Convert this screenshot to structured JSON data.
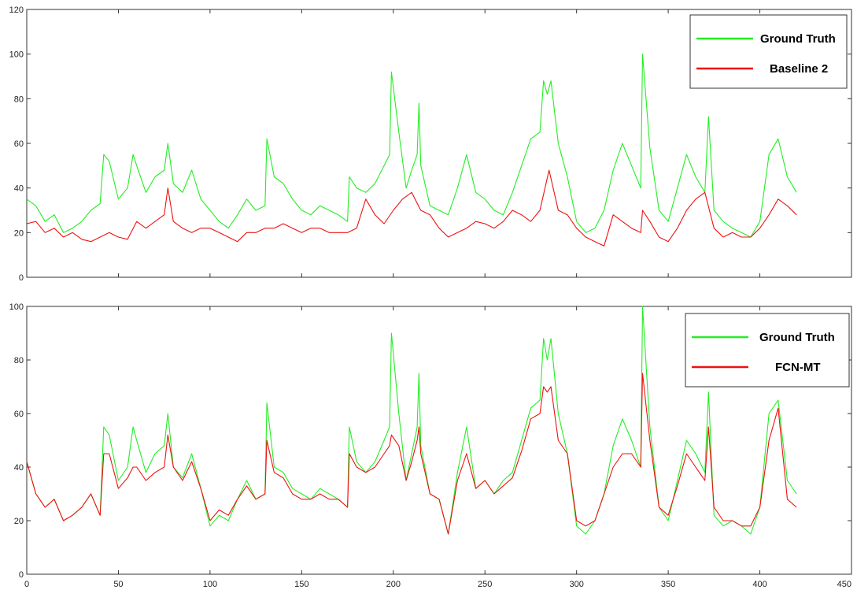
{
  "chart_data": [
    {
      "type": "line",
      "title": "",
      "xlabel": "",
      "ylabel": "",
      "xlim": [
        0,
        450
      ],
      "ylim": [
        0,
        120
      ],
      "xticks": [
        0,
        50,
        100,
        150,
        200,
        250,
        300,
        350,
        400,
        450
      ],
      "yticks": [
        0,
        20,
        40,
        60,
        80,
        100,
        120
      ],
      "show_xtick_labels": false,
      "grid": false,
      "legend_position": "top-right",
      "series": [
        {
          "name": "Ground Truth",
          "color": "#22ee22",
          "x": [
            0,
            5,
            10,
            15,
            20,
            25,
            30,
            35,
            40,
            42,
            45,
            50,
            55,
            58,
            60,
            65,
            70,
            75,
            77,
            80,
            85,
            90,
            95,
            100,
            105,
            110,
            115,
            120,
            125,
            130,
            131,
            135,
            140,
            145,
            150,
            155,
            160,
            165,
            170,
            175,
            176,
            180,
            185,
            190,
            195,
            198,
            199,
            203,
            207,
            210,
            213,
            214,
            215,
            220,
            225,
            230,
            235,
            240,
            245,
            250,
            255,
            260,
            265,
            270,
            275,
            280,
            282,
            284,
            286,
            290,
            295,
            300,
            305,
            310,
            315,
            320,
            325,
            330,
            335,
            336,
            340,
            345,
            350,
            355,
            360,
            365,
            370,
            372,
            375,
            380,
            385,
            390,
            395,
            400,
            405,
            410,
            415,
            420
          ],
          "y": [
            35,
            32,
            25,
            28,
            20,
            22,
            25,
            30,
            33,
            55,
            52,
            35,
            40,
            55,
            50,
            38,
            45,
            48,
            60,
            42,
            38,
            48,
            35,
            30,
            25,
            22,
            28,
            35,
            30,
            32,
            62,
            45,
            42,
            35,
            30,
            28,
            32,
            30,
            28,
            25,
            45,
            40,
            38,
            42,
            50,
            55,
            92,
            65,
            40,
            48,
            55,
            78,
            50,
            32,
            30,
            28,
            40,
            55,
            38,
            35,
            30,
            28,
            38,
            50,
            62,
            65,
            88,
            82,
            88,
            60,
            45,
            25,
            20,
            22,
            30,
            48,
            60,
            50,
            40,
            100,
            58,
            30,
            25,
            40,
            55,
            45,
            38,
            72,
            30,
            25,
            22,
            20,
            18,
            25,
            55,
            62,
            45,
            38
          ]
        },
        {
          "name": "Baseline 2",
          "color": "#ee1111",
          "x": [
            0,
            5,
            10,
            15,
            20,
            25,
            30,
            35,
            40,
            45,
            50,
            55,
            60,
            65,
            70,
            75,
            77,
            80,
            85,
            90,
            95,
            100,
            105,
            110,
            115,
            120,
            125,
            130,
            135,
            140,
            145,
            150,
            155,
            160,
            165,
            170,
            175,
            180,
            185,
            190,
            195,
            200,
            205,
            210,
            215,
            220,
            225,
            230,
            235,
            240,
            245,
            250,
            255,
            260,
            265,
            270,
            275,
            280,
            285,
            290,
            295,
            300,
            305,
            310,
            315,
            320,
            325,
            330,
            335,
            336,
            340,
            345,
            350,
            355,
            360,
            365,
            370,
            375,
            380,
            385,
            390,
            395,
            400,
            405,
            410,
            415,
            420
          ],
          "y": [
            24,
            25,
            20,
            22,
            18,
            20,
            17,
            16,
            18,
            20,
            18,
            17,
            25,
            22,
            25,
            28,
            40,
            25,
            22,
            20,
            22,
            22,
            20,
            18,
            16,
            20,
            20,
            22,
            22,
            24,
            22,
            20,
            22,
            22,
            20,
            20,
            20,
            22,
            35,
            28,
            24,
            30,
            35,
            38,
            30,
            28,
            22,
            18,
            20,
            22,
            25,
            24,
            22,
            25,
            30,
            28,
            25,
            30,
            48,
            30,
            28,
            22,
            18,
            16,
            14,
            28,
            25,
            22,
            20,
            30,
            25,
            18,
            16,
            22,
            30,
            35,
            38,
            22,
            18,
            20,
            18,
            18,
            22,
            28,
            35,
            32,
            28
          ]
        }
      ]
    },
    {
      "type": "line",
      "title": "",
      "xlabel": "",
      "ylabel": "",
      "xlim": [
        0,
        450
      ],
      "ylim": [
        0,
        100
      ],
      "xticks": [
        0,
        50,
        100,
        150,
        200,
        250,
        300,
        350,
        400,
        450
      ],
      "yticks": [
        0,
        20,
        40,
        60,
        80,
        100
      ],
      "show_xtick_labels": true,
      "grid": false,
      "legend_position": "top-right",
      "series": [
        {
          "name": "Ground Truth",
          "color": "#22ee22",
          "x": [
            0,
            5,
            10,
            15,
            20,
            25,
            30,
            35,
            40,
            42,
            45,
            50,
            55,
            58,
            60,
            65,
            70,
            75,
            77,
            80,
            85,
            90,
            95,
            100,
            105,
            110,
            115,
            120,
            125,
            130,
            131,
            135,
            140,
            145,
            150,
            155,
            160,
            165,
            170,
            175,
            176,
            180,
            185,
            190,
            195,
            198,
            199,
            203,
            207,
            210,
            213,
            214,
            215,
            220,
            225,
            230,
            235,
            240,
            245,
            250,
            255,
            260,
            265,
            270,
            275,
            280,
            282,
            284,
            286,
            290,
            295,
            300,
            305,
            310,
            315,
            320,
            325,
            330,
            335,
            336,
            340,
            345,
            350,
            355,
            360,
            365,
            370,
            372,
            375,
            380,
            385,
            390,
            395,
            400,
            405,
            410,
            415,
            420
          ],
          "y": [
            42,
            30,
            25,
            28,
            20,
            22,
            25,
            30,
            22,
            55,
            52,
            35,
            40,
            55,
            50,
            38,
            45,
            48,
            60,
            40,
            36,
            45,
            32,
            18,
            22,
            20,
            28,
            35,
            28,
            30,
            64,
            40,
            38,
            32,
            30,
            28,
            32,
            30,
            28,
            25,
            55,
            42,
            38,
            42,
            50,
            55,
            90,
            60,
            35,
            45,
            55,
            75,
            48,
            30,
            28,
            15,
            38,
            55,
            32,
            35,
            30,
            35,
            38,
            50,
            62,
            65,
            88,
            80,
            88,
            60,
            45,
            18,
            15,
            20,
            30,
            48,
            58,
            50,
            40,
            100,
            55,
            25,
            20,
            35,
            50,
            45,
            38,
            68,
            22,
            18,
            20,
            18,
            15,
            25,
            60,
            65,
            35,
            30
          ]
        },
        {
          "name": "FCN-MT",
          "color": "#ee1111",
          "x": [
            0,
            5,
            10,
            15,
            20,
            25,
            30,
            35,
            40,
            42,
            45,
            50,
            55,
            58,
            60,
            65,
            70,
            75,
            77,
            80,
            85,
            90,
            95,
            100,
            105,
            110,
            115,
            120,
            125,
            130,
            131,
            135,
            140,
            145,
            150,
            155,
            160,
            165,
            170,
            175,
            176,
            180,
            185,
            190,
            195,
            198,
            199,
            203,
            207,
            210,
            213,
            214,
            215,
            220,
            225,
            230,
            235,
            240,
            245,
            250,
            255,
            260,
            265,
            270,
            275,
            280,
            282,
            284,
            286,
            290,
            295,
            300,
            305,
            310,
            315,
            320,
            325,
            330,
            335,
            336,
            340,
            345,
            350,
            355,
            360,
            365,
            370,
            372,
            375,
            380,
            385,
            390,
            395,
            400,
            405,
            410,
            415,
            420
          ],
          "y": [
            42,
            30,
            25,
            28,
            20,
            22,
            25,
            30,
            22,
            45,
            45,
            32,
            36,
            40,
            40,
            35,
            38,
            40,
            52,
            40,
            35,
            42,
            32,
            20,
            24,
            22,
            28,
            33,
            28,
            30,
            50,
            38,
            36,
            30,
            28,
            28,
            30,
            28,
            28,
            25,
            45,
            40,
            38,
            40,
            45,
            48,
            52,
            48,
            35,
            42,
            50,
            55,
            45,
            30,
            28,
            15,
            35,
            45,
            32,
            35,
            30,
            33,
            36,
            46,
            58,
            60,
            70,
            68,
            70,
            50,
            45,
            20,
            18,
            20,
            30,
            40,
            45,
            45,
            40,
            75,
            50,
            25,
            22,
            33,
            45,
            40,
            35,
            55,
            25,
            20,
            20,
            18,
            18,
            25,
            50,
            62,
            28,
            25
          ]
        }
      ]
    }
  ]
}
